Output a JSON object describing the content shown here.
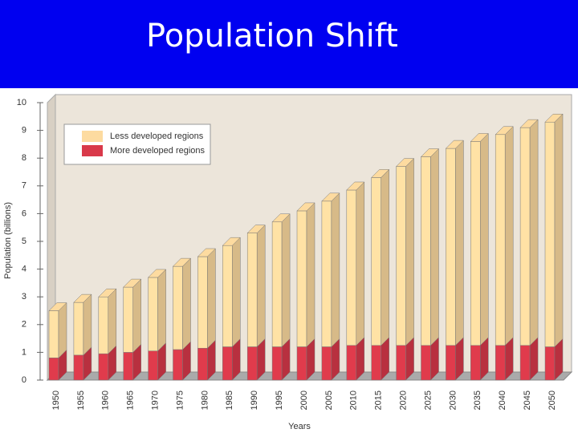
{
  "chart_data": {
    "type": "bar3d-stacked",
    "title": "Population Shift",
    "ylabel": "Population (billions)",
    "xlabel": "Years",
    "categories": [
      "1950",
      "1955",
      "1960",
      "1965",
      "1970",
      "1975",
      "1980",
      "1985",
      "1990",
      "1995",
      "2000",
      "2005",
      "2010",
      "2015",
      "2020",
      "2025",
      "2030",
      "2035",
      "2040",
      "2045",
      "2050"
    ],
    "series": [
      {
        "name": "More developed regions",
        "color": "#d9394a",
        "values": [
          0.8,
          0.9,
          0.95,
          1.0,
          1.05,
          1.1,
          1.15,
          1.2,
          1.2,
          1.2,
          1.2,
          1.2,
          1.25,
          1.25,
          1.25,
          1.25,
          1.25,
          1.25,
          1.25,
          1.25,
          1.2
        ]
      },
      {
        "name": "Less developed regions",
        "color": "#fddba0",
        "values": [
          1.7,
          1.9,
          2.05,
          2.35,
          2.65,
          3.0,
          3.3,
          3.65,
          4.1,
          4.5,
          4.9,
          5.25,
          5.6,
          6.05,
          6.45,
          6.8,
          7.1,
          7.35,
          7.6,
          7.85,
          8.1
        ]
      }
    ],
    "ylim": [
      0,
      10
    ],
    "yticks": [
      0,
      1,
      2,
      3,
      4,
      5,
      6,
      7,
      8,
      9,
      10
    ],
    "legend": "upper left"
  }
}
